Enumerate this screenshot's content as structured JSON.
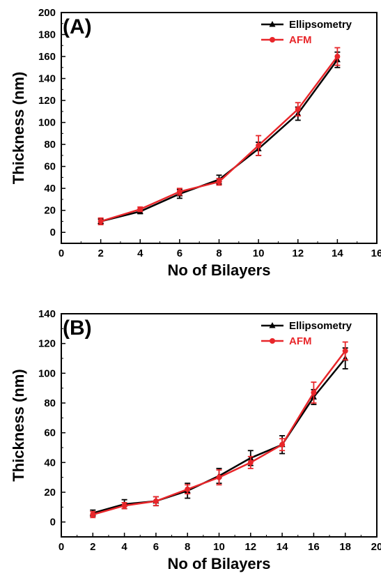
{
  "chart_data": [
    {
      "type": "line",
      "panel_label": "(A)",
      "xlabel": "No of Bilayers",
      "ylabel": "Thickness (nm)",
      "xlim": [
        0,
        16
      ],
      "ylim": [
        -10,
        200
      ],
      "xticks": [
        0,
        2,
        4,
        6,
        8,
        10,
        12,
        14,
        16
      ],
      "yticks": [
        0,
        20,
        40,
        60,
        80,
        100,
        120,
        140,
        160,
        180,
        200
      ],
      "legend_position": "top-right",
      "series": [
        {
          "name": "Ellipsometry",
          "color": "#000000",
          "marker": "triangle",
          "x": [
            2,
            4,
            6,
            8,
            10,
            12,
            14
          ],
          "y": [
            10,
            19,
            35,
            48,
            76,
            108,
            157
          ],
          "err": [
            2,
            2,
            4,
            4,
            6,
            6,
            7
          ]
        },
        {
          "name": "AFM",
          "color": "#e8262a",
          "marker": "circle",
          "x": [
            2,
            4,
            6,
            8,
            10,
            12,
            14
          ],
          "y": [
            10,
            21,
            37,
            46,
            79,
            112,
            160
          ],
          "err": [
            3,
            2,
            3,
            3,
            9,
            6,
            8
          ]
        }
      ]
    },
    {
      "type": "line",
      "panel_label": "(B)",
      "xlabel": "No of Bilayers",
      "ylabel": "Thickness (nm)",
      "xlim": [
        0,
        20
      ],
      "ylim": [
        -10,
        140
      ],
      "xticks": [
        0,
        2,
        4,
        6,
        8,
        10,
        12,
        14,
        16,
        18,
        20
      ],
      "yticks": [
        0,
        20,
        40,
        60,
        80,
        100,
        120,
        140
      ],
      "legend_position": "top-right",
      "series": [
        {
          "name": "Ellipsometry",
          "color": "#000000",
          "marker": "triangle",
          "x": [
            2,
            4,
            6,
            8,
            10,
            12,
            14,
            16,
            18
          ],
          "y": [
            6,
            12,
            14,
            21,
            31,
            43,
            52,
            84,
            110
          ],
          "err": [
            2,
            3,
            3,
            5,
            5,
            5,
            6,
            5,
            7
          ]
        },
        {
          "name": "AFM",
          "color": "#e8262a",
          "marker": "circle",
          "x": [
            2,
            4,
            6,
            8,
            10,
            12,
            14,
            16,
            18
          ],
          "y": [
            5,
            11,
            14,
            22,
            30,
            40,
            52,
            87,
            115
          ],
          "err": [
            2,
            2,
            3,
            3,
            5,
            4,
            4,
            7,
            6
          ]
        }
      ]
    }
  ]
}
